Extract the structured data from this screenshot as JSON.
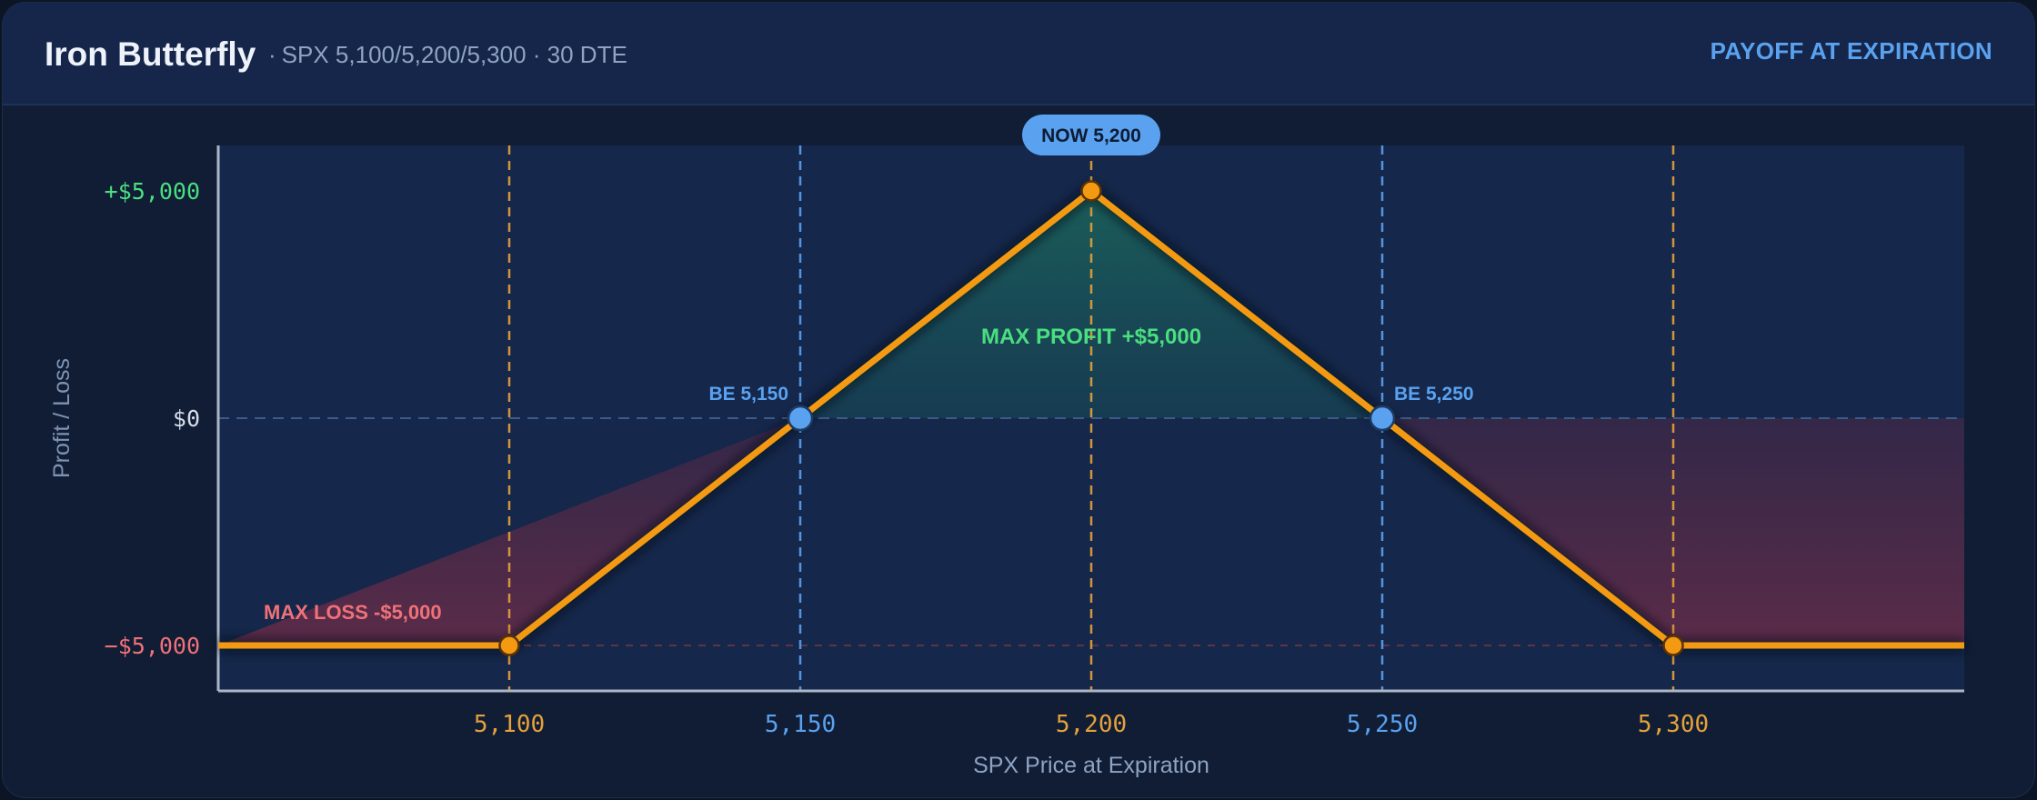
{
  "header": {
    "title": "Iron Butterfly",
    "subtitle": "SPX 5,100/5,200/5,300 · 30 DTE",
    "mode": "PAYOFF AT EXPIRATION"
  },
  "colors": {
    "payoff": "#f39a12",
    "strike": "#e5a13a",
    "breakeven": "#5aa2f0",
    "profit": "#4ade80",
    "loss": "#f07178",
    "axis_text": "#d7deea",
    "muted": "#8fa3c2"
  },
  "chart_data": {
    "type": "line",
    "title": "",
    "xlabel": "SPX Price at Expiration",
    "ylabel": "Profit / Loss",
    "xlim": [
      5050,
      5350
    ],
    "ylim": [
      -6000,
      6000
    ],
    "grid": false,
    "x_ticks": [
      {
        "value": 5100,
        "label": "5,100",
        "kind": "strike"
      },
      {
        "value": 5150,
        "label": "5,150",
        "kind": "breakeven"
      },
      {
        "value": 5200,
        "label": "5,200",
        "kind": "strike"
      },
      {
        "value": 5250,
        "label": "5,250",
        "kind": "breakeven"
      },
      {
        "value": 5300,
        "label": "5,300",
        "kind": "strike"
      }
    ],
    "y_ticks": [
      {
        "value": 5000,
        "label": "+$5,000",
        "kind": "profit"
      },
      {
        "value": 0,
        "label": "$0",
        "kind": "neutral"
      },
      {
        "value": -5000,
        "label": "−$5,000",
        "kind": "loss"
      }
    ],
    "series": [
      {
        "points": [
          [
            5050,
            -5000
          ],
          [
            5100,
            -5000
          ],
          [
            5150,
            0
          ],
          [
            5200,
            5000
          ],
          [
            5250,
            0
          ],
          [
            5300,
            -5000
          ],
          [
            5350,
            -5000
          ]
        ]
      }
    ],
    "markers": [
      {
        "x": 5100,
        "y": -5000,
        "kind": "strike"
      },
      {
        "x": 5150,
        "y": 0,
        "kind": "breakeven"
      },
      {
        "x": 5200,
        "y": 5000,
        "kind": "strike"
      },
      {
        "x": 5250,
        "y": 0,
        "kind": "breakeven"
      },
      {
        "x": 5300,
        "y": -5000,
        "kind": "strike"
      }
    ],
    "annotations": {
      "now": {
        "x": 5200,
        "label": "NOW 5,200"
      },
      "breakevens": [
        {
          "x": 5150,
          "label": "BE 5,150"
        },
        {
          "x": 5250,
          "label": "BE 5,250"
        }
      ],
      "max_profit": {
        "value": 5000,
        "label": "MAX PROFIT  +$5,000"
      },
      "max_loss": {
        "value": -5000,
        "label": "MAX LOSS  -$5,000"
      }
    }
  }
}
